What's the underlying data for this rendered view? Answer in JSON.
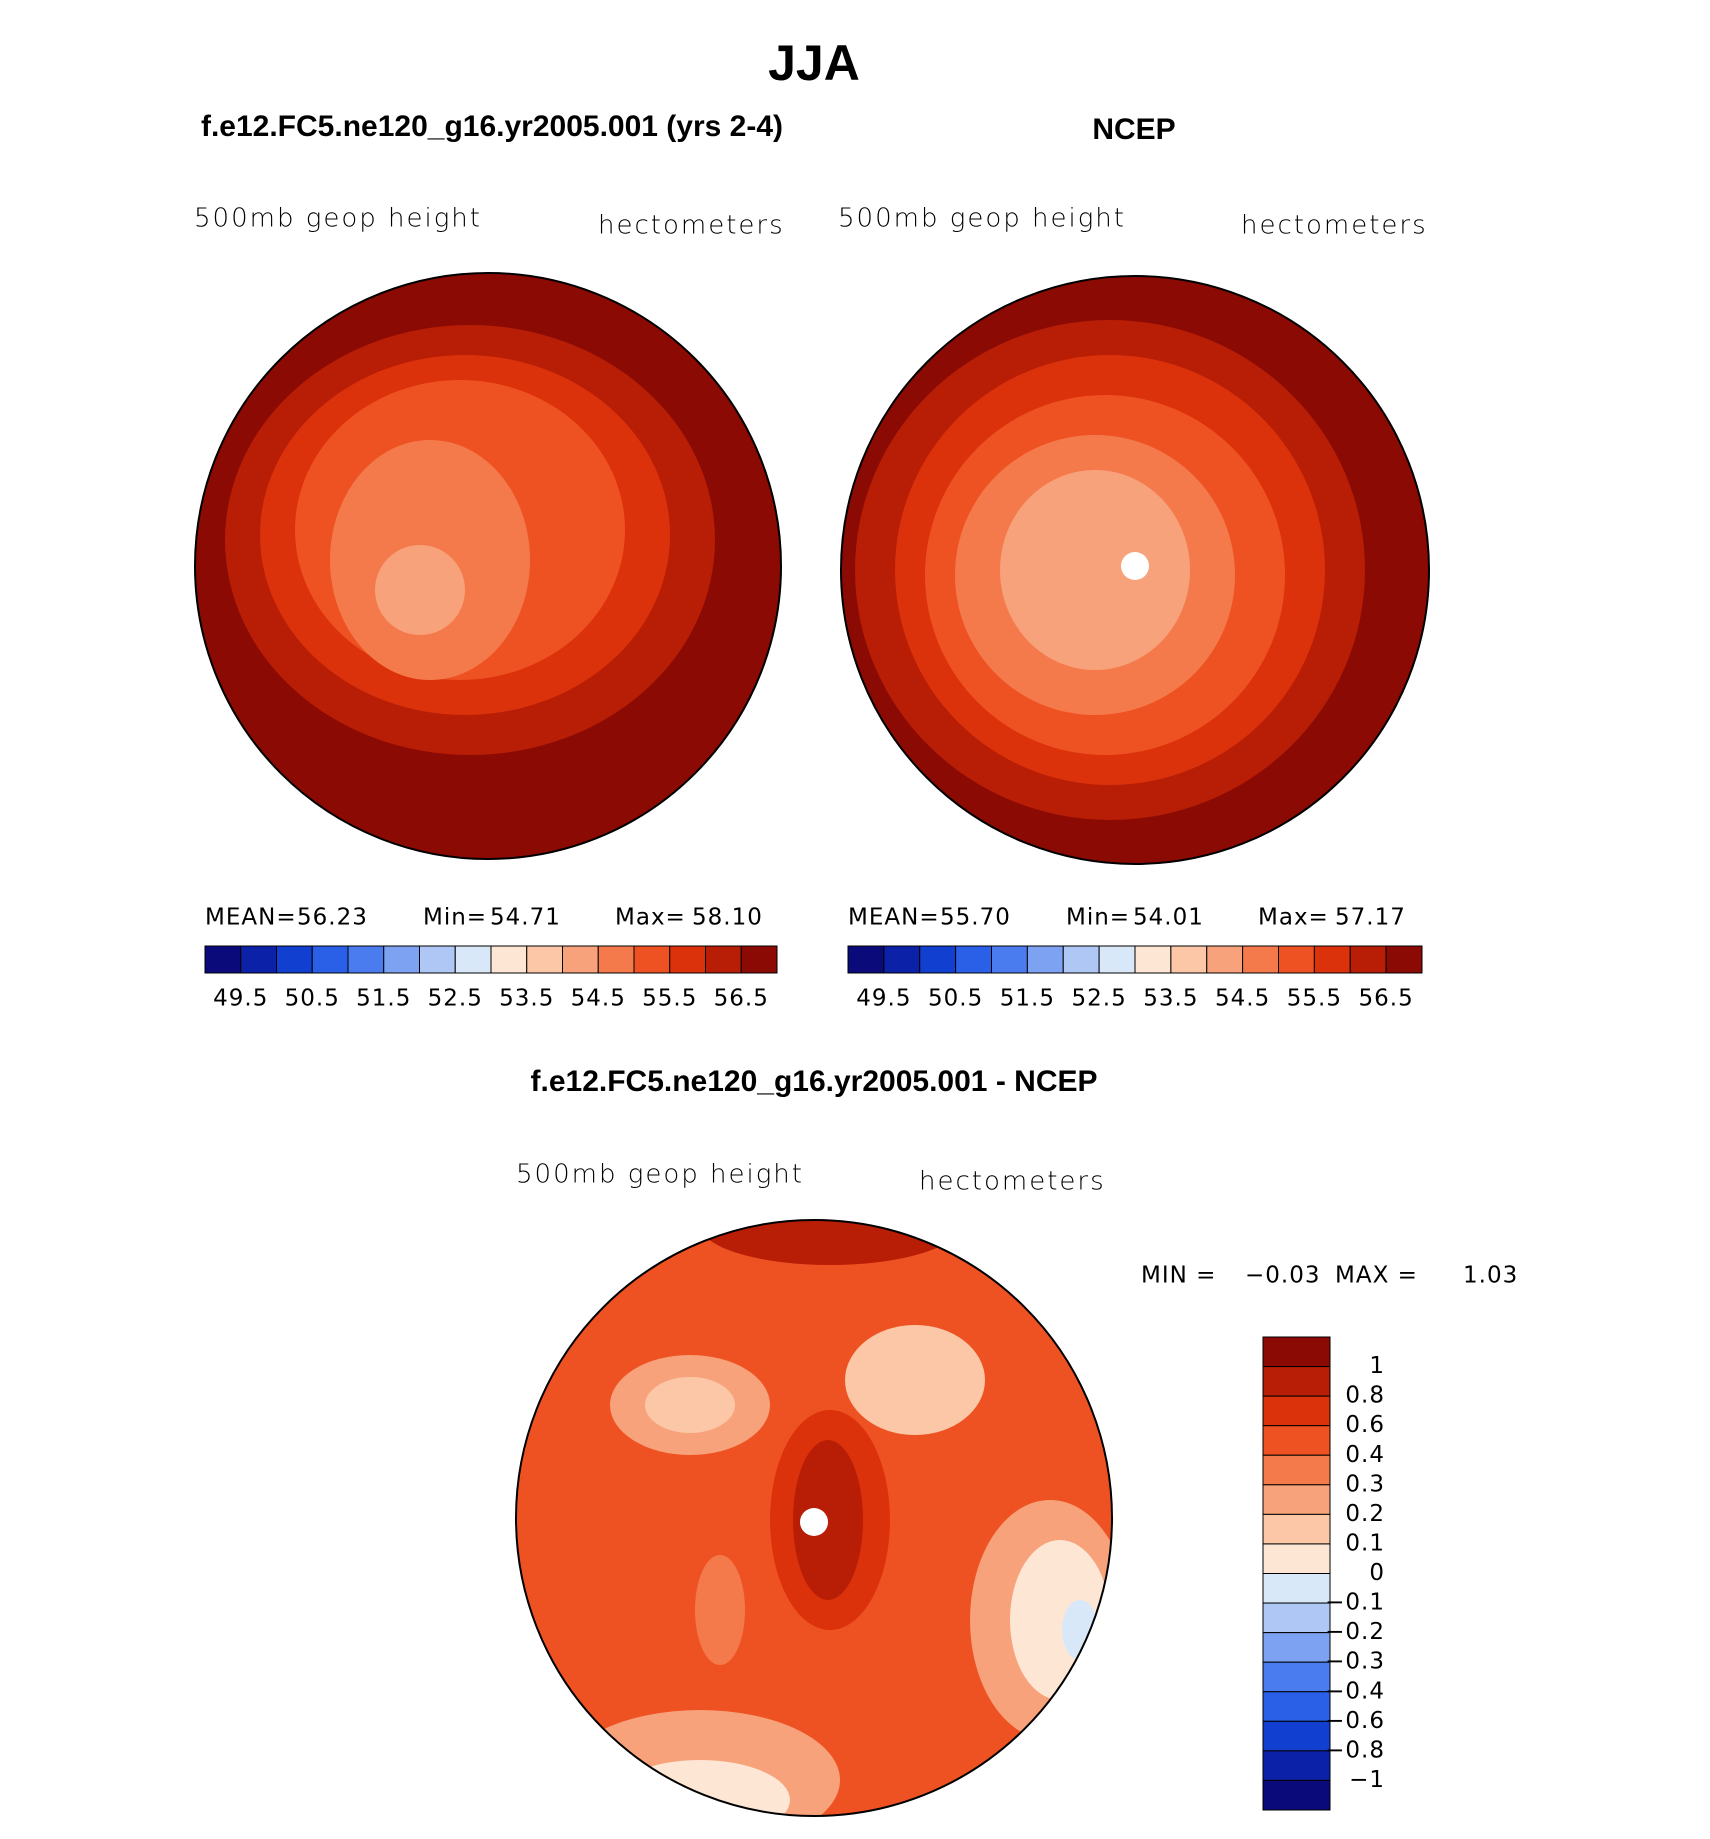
{
  "title": "JJA",
  "panels": [
    {
      "subtitle": "f.e12.FC5.ne120_g16.yr2005.001 (yrs 2-4)",
      "variable": "500mb geop height",
      "units": "hectometers",
      "stats": [
        {
          "label": "MEAN=",
          "value": "56.23"
        },
        {
          "label": "Min=",
          "value": "54.71"
        },
        {
          "label": "Max=",
          "value": "58.10"
        }
      ],
      "colorbar_labels": [
        "49.5",
        "50.5",
        "51.5",
        "52.5",
        "53.5",
        "54.5",
        "55.5",
        "56.5"
      ]
    },
    {
      "subtitle": "NCEP",
      "variable": "500mb geop height",
      "units": "hectometers",
      "stats": [
        {
          "label": "MEAN=",
          "value": "55.70"
        },
        {
          "label": "Min=",
          "value": "54.01"
        },
        {
          "label": "Max=",
          "value": "57.17"
        }
      ],
      "colorbar_labels": [
        "49.5",
        "50.5",
        "51.5",
        "52.5",
        "53.5",
        "54.5",
        "55.5",
        "56.5"
      ]
    }
  ],
  "difference": {
    "subtitle": "f.e12.FC5.ne120_g16.yr2005.001 - NCEP",
    "variable": "500mb geop height",
    "units": "hectometers",
    "min_label": "MIN =",
    "min": "−0.03",
    "max_label": "MAX =",
    "max": "1.03",
    "colorbar_labels": [
      "1",
      "0.8",
      "0.6",
      "0.4",
      "0.3",
      "0.2",
      "0.1",
      "0",
      "−0.1",
      "−0.2",
      "−0.3",
      "−0.4",
      "−0.6",
      "−0.8",
      "−1"
    ]
  },
  "colors": [
    "#0a0a7a",
    "#0b22a8",
    "#1140d0",
    "#2a5fe8",
    "#4a7cf0",
    "#7ea2f2",
    "#aec7f5",
    "#d9e8f8",
    "#fde7d4",
    "#fbc7a6",
    "#f7a27a",
    "#f47a4b",
    "#ef5222",
    "#dc320b",
    "#b81d06",
    "#8b0a03"
  ]
}
